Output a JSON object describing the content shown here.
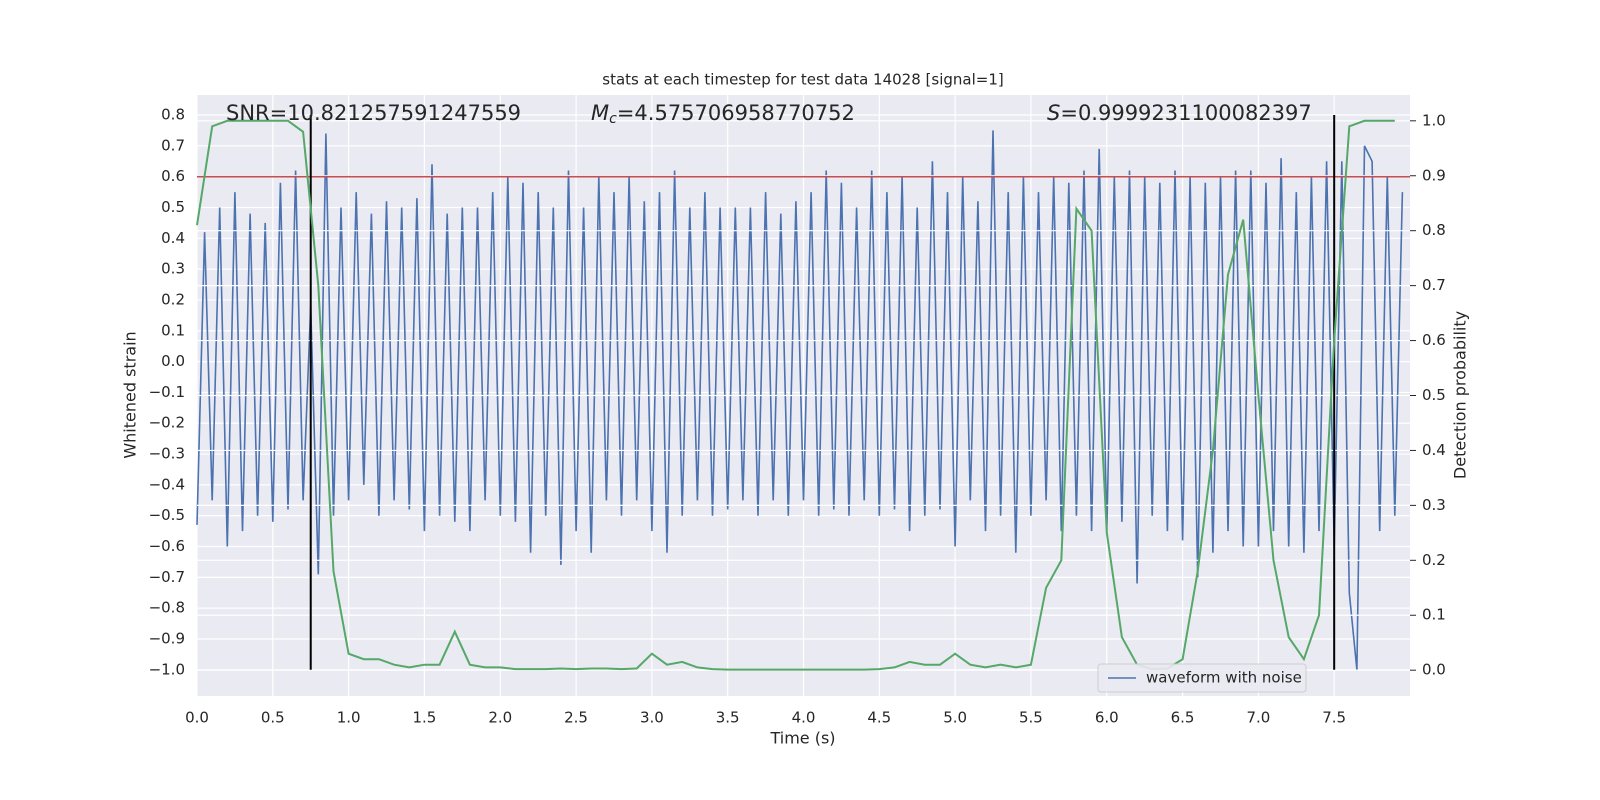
{
  "chart_data": {
    "type": "line",
    "title": "stats at each timestep for test data 14028 [signal=1]",
    "xlabel": "Time (s)",
    "ylabel": "Whitened strain",
    "y2label": "Detection probability",
    "annotations": [
      {
        "text": "SNR=10.821257591247559"
      },
      {
        "symbol": "M",
        "subscript": "c",
        "text": "=4.575706958770752"
      },
      {
        "symbol": "S",
        "text": "=0.9999231100082397"
      }
    ],
    "xlim": [
      0,
      8
    ],
    "ylim": [
      -1.085,
      0.865
    ],
    "y2lim": [
      -0.047,
      1.047
    ],
    "xticks": [
      {
        "value": 0,
        "label": "0.0"
      },
      {
        "value": 0.5,
        "label": "0.5"
      },
      {
        "value": 1,
        "label": "1.0"
      },
      {
        "value": 1.5,
        "label": "1.5"
      },
      {
        "value": 2,
        "label": "2.0"
      },
      {
        "value": 2.5,
        "label": "2.5"
      },
      {
        "value": 3,
        "label": "3.0"
      },
      {
        "value": 3.5,
        "label": "3.5"
      },
      {
        "value": 4,
        "label": "4.0"
      },
      {
        "value": 4.5,
        "label": "4.5"
      },
      {
        "value": 5,
        "label": "5.0"
      },
      {
        "value": 5.5,
        "label": "5.5"
      },
      {
        "value": 6,
        "label": "6.0"
      },
      {
        "value": 6.5,
        "label": "6.5"
      },
      {
        "value": 7,
        "label": "7.0"
      },
      {
        "value": 7.5,
        "label": "7.5"
      }
    ],
    "yticks": [
      {
        "value": -1,
        "label": "−1.0"
      },
      {
        "value": -0.9,
        "label": "−0.9"
      },
      {
        "value": -0.8,
        "label": "−0.8"
      },
      {
        "value": -0.7,
        "label": "−0.7"
      },
      {
        "value": -0.6,
        "label": "−0.6"
      },
      {
        "value": -0.5,
        "label": "−0.5"
      },
      {
        "value": -0.4,
        "label": "−0.4"
      },
      {
        "value": -0.3,
        "label": "−0.3"
      },
      {
        "value": -0.2,
        "label": "−0.2"
      },
      {
        "value": -0.1,
        "label": "−0.1"
      },
      {
        "value": 0,
        "label": "0.0"
      },
      {
        "value": 0.1,
        "label": "0.1"
      },
      {
        "value": 0.2,
        "label": "0.2"
      },
      {
        "value": 0.3,
        "label": "0.3"
      },
      {
        "value": 0.4,
        "label": "0.4"
      },
      {
        "value": 0.5,
        "label": "0.5"
      },
      {
        "value": 0.6,
        "label": "0.6"
      },
      {
        "value": 0.7,
        "label": "0.7"
      },
      {
        "value": 0.8,
        "label": "0.8"
      }
    ],
    "y2ticks": [
      {
        "value": 0,
        "label": "0.0"
      },
      {
        "value": 0.1,
        "label": "0.1"
      },
      {
        "value": 0.2,
        "label": "0.2"
      },
      {
        "value": 0.3,
        "label": "0.3"
      },
      {
        "value": 0.4,
        "label": "0.4"
      },
      {
        "value": 0.5,
        "label": "0.5"
      },
      {
        "value": 0.6,
        "label": "0.6"
      },
      {
        "value": 0.7,
        "label": "0.7"
      },
      {
        "value": 0.8,
        "label": "0.8"
      },
      {
        "value": 0.9,
        "label": "0.9"
      },
      {
        "value": 1,
        "label": "1.0"
      }
    ],
    "grid": true,
    "legend": "lower right",
    "hlines": [
      {
        "y": 0.6,
        "color": "#c44e52"
      }
    ],
    "vlines": [
      {
        "x": 0.75,
        "ymin": -1.0,
        "ymax": 0.8,
        "color": "#000000"
      },
      {
        "x": 7.5,
        "ymin": -1.0,
        "ymax": 0.8,
        "color": "#000000"
      }
    ],
    "series": [
      {
        "name": "waveform with noise",
        "color": "#4c72b0",
        "axis": "y",
        "x": [
          0,
          0.05,
          0.1,
          0.15,
          0.2,
          0.25,
          0.3,
          0.35,
          0.4,
          0.45,
          0.5,
          0.55,
          0.6,
          0.65,
          0.7,
          0.75,
          0.8,
          0.85,
          0.9,
          0.95,
          1,
          1.05,
          1.1,
          1.15,
          1.2,
          1.25,
          1.3,
          1.35,
          1.4,
          1.45,
          1.5,
          1.55,
          1.6,
          1.65,
          1.7,
          1.75,
          1.8,
          1.85,
          1.9,
          1.95,
          2,
          2.05,
          2.1,
          2.15,
          2.2,
          2.25,
          2.3,
          2.35,
          2.4,
          2.45,
          2.5,
          2.55,
          2.6,
          2.65,
          2.7,
          2.75,
          2.8,
          2.85,
          2.9,
          2.95,
          3,
          3.05,
          3.1,
          3.15,
          3.2,
          3.25,
          3.3,
          3.35,
          3.4,
          3.45,
          3.5,
          3.55,
          3.6,
          3.65,
          3.7,
          3.75,
          3.8,
          3.85,
          3.9,
          3.95,
          4,
          4.05,
          4.1,
          4.15,
          4.2,
          4.25,
          4.3,
          4.35,
          4.4,
          4.45,
          4.5,
          4.55,
          4.6,
          4.65,
          4.7,
          4.75,
          4.8,
          4.85,
          4.9,
          4.95,
          5,
          5.05,
          5.1,
          5.15,
          5.2,
          5.25,
          5.3,
          5.35,
          5.4,
          5.45,
          5.5,
          5.55,
          5.6,
          5.65,
          5.7,
          5.75,
          5.8,
          5.85,
          5.9,
          5.95,
          6,
          6.05,
          6.1,
          6.15,
          6.2,
          6.25,
          6.3,
          6.35,
          6.4,
          6.45,
          6.5,
          6.55,
          6.6,
          6.65,
          6.7,
          6.75,
          6.8,
          6.85,
          6.9,
          6.95,
          7,
          7.05,
          7.1,
          7.15,
          7.2,
          7.25,
          7.3,
          7.35,
          7.4,
          7.45,
          7.5,
          7.55,
          7.6,
          7.65,
          7.7,
          7.75,
          7.8,
          7.85,
          7.9,
          7.95
        ],
        "values": [
          -0.53,
          0.42,
          -0.45,
          0.5,
          -0.6,
          0.55,
          -0.55,
          0.48,
          -0.5,
          0.45,
          -0.52,
          0.58,
          -0.48,
          0.62,
          -0.45,
          0.18,
          -0.69,
          0.74,
          -0.5,
          0.5,
          -0.45,
          0.55,
          -0.4,
          0.48,
          -0.5,
          0.52,
          -0.45,
          0.5,
          -0.48,
          0.53,
          -0.55,
          0.64,
          -0.5,
          0.48,
          -0.52,
          0.5,
          -0.55,
          0.5,
          -0.45,
          0.55,
          -0.5,
          0.6,
          -0.52,
          0.58,
          -0.62,
          0.55,
          -0.5,
          0.5,
          -0.66,
          0.62,
          -0.55,
          0.5,
          -0.62,
          0.6,
          -0.45,
          0.55,
          -0.5,
          0.6,
          -0.45,
          0.52,
          -0.55,
          0.55,
          -0.62,
          0.62,
          -0.5,
          0.5,
          -0.45,
          0.55,
          -0.5,
          0.5,
          -0.48,
          0.5,
          -0.45,
          0.5,
          -0.5,
          0.55,
          -0.45,
          0.48,
          -0.5,
          0.52,
          -0.45,
          0.55,
          -0.5,
          0.62,
          -0.48,
          0.58,
          -0.5,
          0.5,
          -0.45,
          0.62,
          -0.5,
          0.55,
          -0.48,
          0.6,
          -0.55,
          0.5,
          -0.5,
          0.65,
          -0.48,
          0.55,
          -0.6,
          0.6,
          -0.45,
          0.52,
          -0.55,
          0.75,
          -0.5,
          0.55,
          -0.62,
          0.6,
          -0.5,
          0.55,
          -0.45,
          0.6,
          -0.55,
          0.58,
          -0.5,
          0.62,
          -0.55,
          0.69,
          -0.55,
          0.6,
          -0.52,
          0.62,
          -0.72,
          0.6,
          -0.5,
          0.58,
          -0.55,
          0.62,
          -0.58,
          0.6,
          -0.7,
          0.58,
          -0.62,
          0.6,
          -0.55,
          0.62,
          -0.6,
          0.62,
          -0.6,
          0.58,
          -0.55,
          0.66,
          -0.6,
          0.55,
          -0.62,
          0.6,
          -0.55,
          0.65,
          -0.6,
          0.65,
          -0.75,
          -1.0,
          0.7,
          0.65,
          -0.55,
          0.6,
          -0.5,
          0.55
        ]
      },
      {
        "color": "#55a868",
        "axis": "y2",
        "x": [
          0,
          0.1,
          0.2,
          0.3,
          0.4,
          0.5,
          0.6,
          0.7,
          0.8,
          0.9,
          1,
          1.1,
          1.2,
          1.3,
          1.4,
          1.5,
          1.6,
          1.7,
          1.8,
          1.9,
          2,
          2.1,
          2.2,
          2.3,
          2.4,
          2.5,
          2.6,
          2.7,
          2.8,
          2.9,
          3,
          3.1,
          3.2,
          3.3,
          3.4,
          3.5,
          3.6,
          3.7,
          3.8,
          3.9,
          4,
          4.1,
          4.2,
          4.3,
          4.4,
          4.5,
          4.6,
          4.7,
          4.8,
          4.9,
          5,
          5.1,
          5.2,
          5.3,
          5.4,
          5.5,
          5.6,
          5.7,
          5.8,
          5.9,
          6,
          6.1,
          6.2,
          6.3,
          6.4,
          6.5,
          6.6,
          6.7,
          6.8,
          6.9,
          7,
          7.1,
          7.2,
          7.3,
          7.4,
          7.5,
          7.6,
          7.7,
          7.8,
          7.9
        ],
        "values": [
          0.81,
          0.99,
          1.0,
          1.0,
          1.0,
          1.0,
          1.0,
          0.98,
          0.7,
          0.18,
          0.03,
          0.02,
          0.02,
          0.01,
          0.005,
          0.01,
          0.01,
          0.07,
          0.01,
          0.005,
          0.005,
          0.002,
          0.002,
          0.002,
          0.003,
          0.002,
          0.003,
          0.003,
          0.002,
          0.003,
          0.03,
          0.01,
          0.015,
          0.005,
          0.002,
          0.001,
          0.001,
          0.001,
          0.001,
          0.001,
          0.001,
          0.001,
          0.001,
          0.001,
          0.001,
          0.002,
          0.005,
          0.015,
          0.01,
          0.01,
          0.03,
          0.01,
          0.005,
          0.01,
          0.005,
          0.01,
          0.15,
          0.2,
          0.84,
          0.8,
          0.25,
          0.06,
          0.01,
          0.002,
          0.003,
          0.02,
          0.18,
          0.4,
          0.72,
          0.82,
          0.5,
          0.2,
          0.06,
          0.02,
          0.1,
          0.6,
          0.99,
          1.0,
          1.0,
          1.0
        ]
      }
    ]
  }
}
